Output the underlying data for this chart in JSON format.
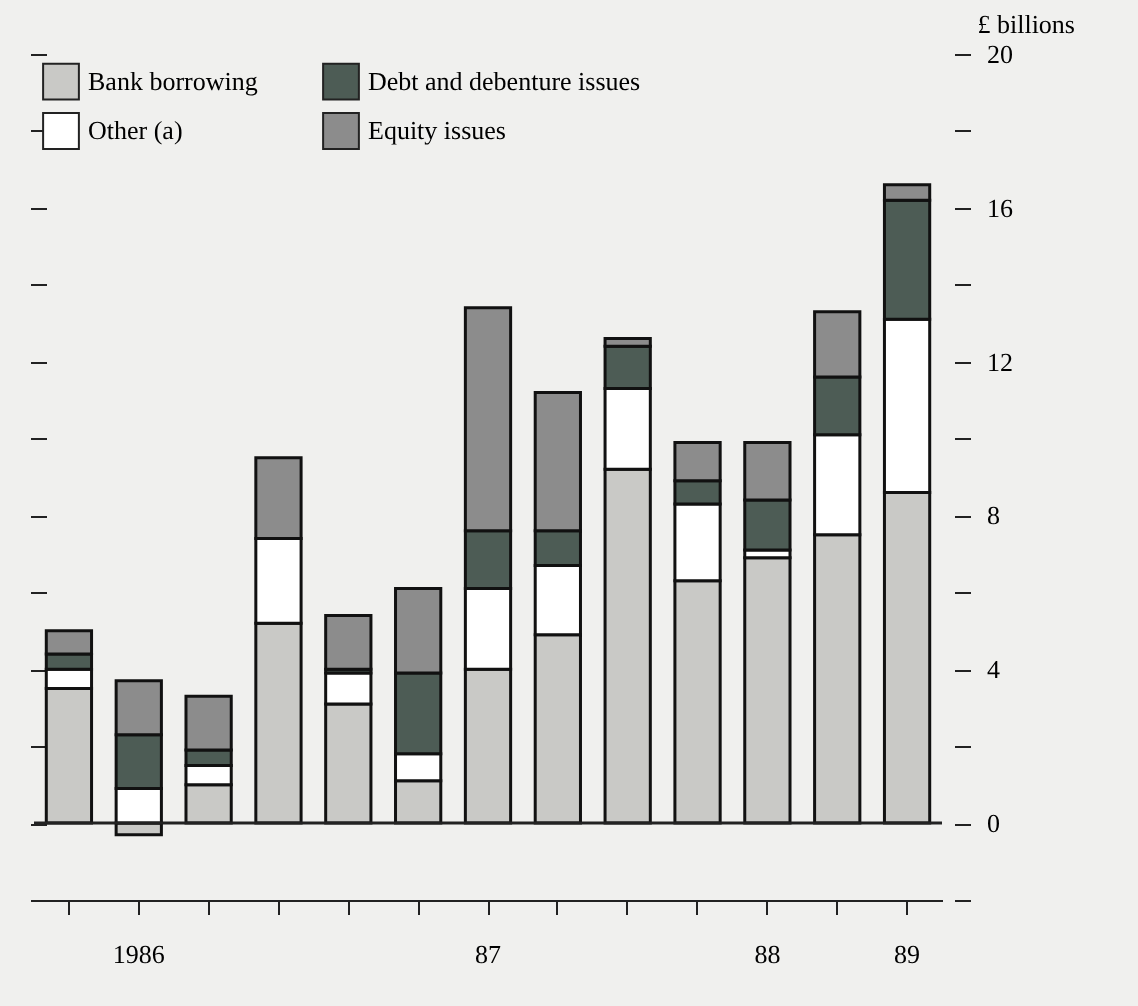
{
  "chart_data": {
    "type": "bar",
    "stacked": true,
    "ylabel": "£ billions",
    "legend": "top left",
    "categories": [
      null,
      "1986",
      null,
      null,
      null,
      null,
      "87",
      null,
      null,
      null,
      "88",
      null,
      "89"
    ],
    "series": [
      {
        "name": "Bank borrowing",
        "color": "#c9c9c6",
        "values": [
          3.5,
          -0.3,
          1.0,
          5.2,
          3.1,
          1.1,
          4.0,
          4.9,
          9.2,
          6.3,
          6.9,
          7.5,
          8.6
        ]
      },
      {
        "name": "Other (a)",
        "color": "#ffffff",
        "values": [
          0.5,
          0.9,
          0.5,
          2.2,
          0.8,
          0.7,
          2.1,
          1.8,
          2.1,
          2.0,
          0.2,
          2.6,
          4.5
        ]
      },
      {
        "name": "Debt and debenture issues",
        "color": "#4d5c55",
        "values": [
          0.4,
          1.4,
          0.4,
          0,
          0.1,
          2.1,
          1.5,
          0.9,
          1.1,
          0.6,
          1.3,
          1.5,
          3.1
        ]
      },
      {
        "name": "Equity issues",
        "color": "#8c8c8c",
        "values": [
          0.6,
          1.4,
          1.4,
          2.1,
          1.4,
          2.2,
          5.8,
          3.6,
          0.2,
          1.0,
          1.5,
          1.7,
          0.4
        ]
      }
    ],
    "ylim": [
      -2,
      20
    ],
    "yticks": [
      {
        "value": -2,
        "label": null
      },
      0,
      {
        "value": 2,
        "label": null
      },
      4,
      {
        "value": 6,
        "label": null
      },
      8,
      {
        "value": 10,
        "label": null
      },
      12,
      {
        "value": 14,
        "label": null
      },
      16,
      {
        "value": 18,
        "label": null
      },
      20
    ],
    "ref_lines": [
      {
        "axis": "y",
        "value": 0
      }
    ]
  }
}
